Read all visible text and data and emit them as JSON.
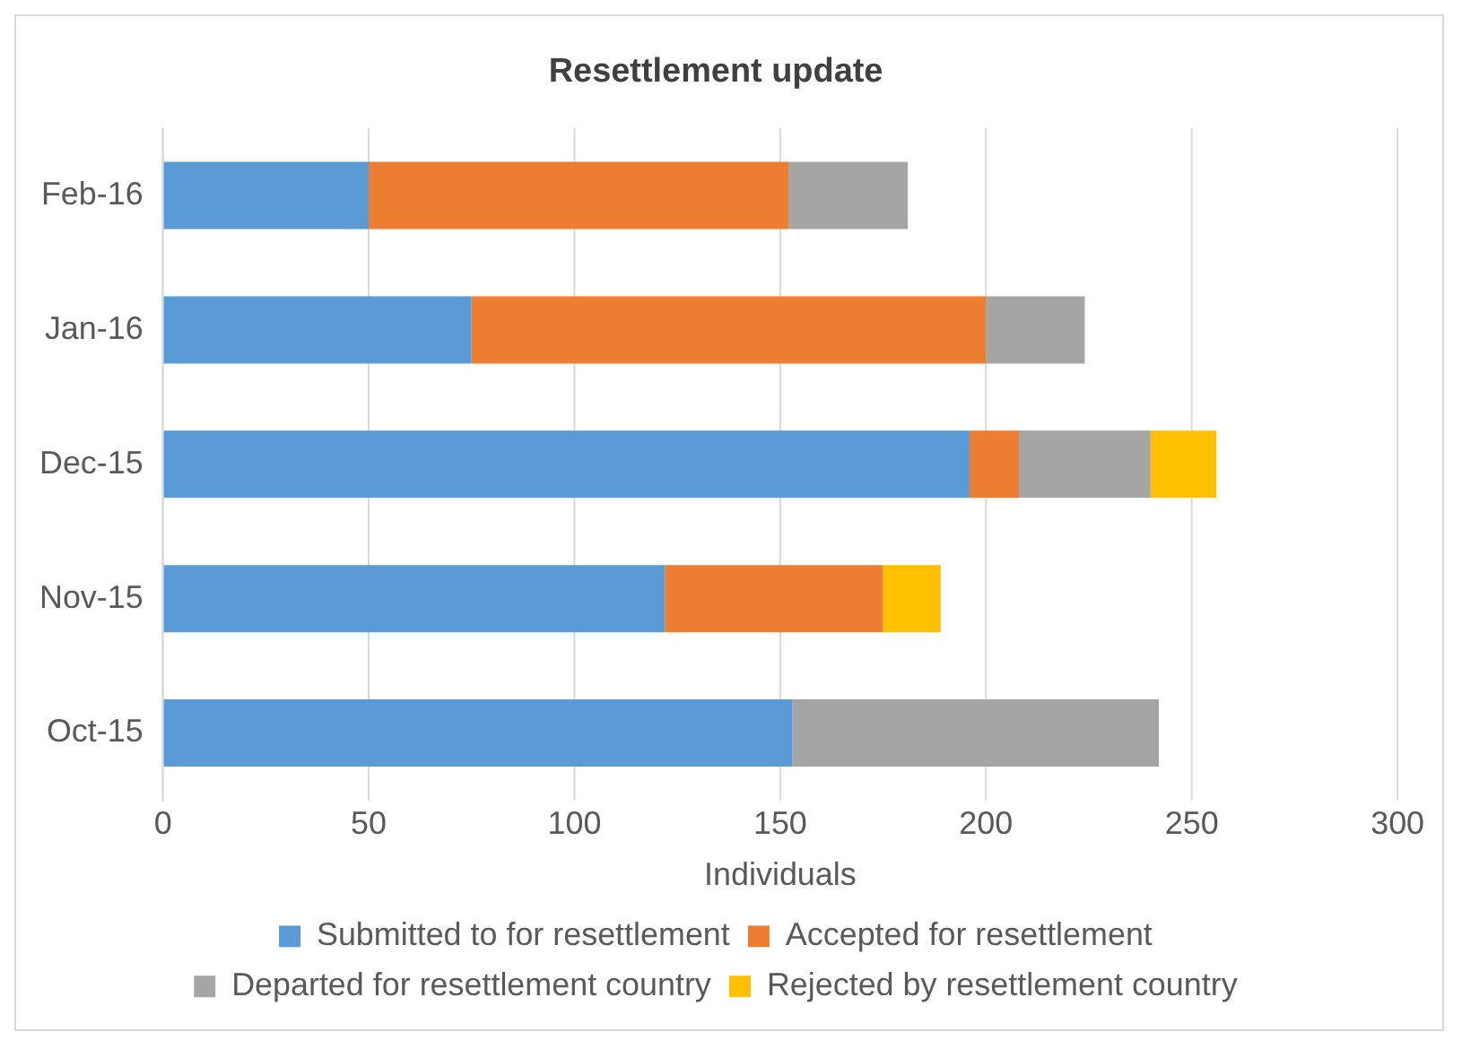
{
  "chart_data": {
    "type": "bar",
    "orientation": "horizontal",
    "stacked": true,
    "title": "Resettlement update",
    "xlabel": "Individuals",
    "categories": [
      "Feb-16",
      "Jan-16",
      "Dec-15",
      "Nov-15",
      "Oct-15"
    ],
    "series": [
      {
        "name": "Submitted to for resettlement",
        "color": "#5b9bd5",
        "values": [
          50,
          75,
          196,
          122,
          153
        ]
      },
      {
        "name": "Accepted for resettlement",
        "color": "#ed7d31",
        "values": [
          102,
          125,
          12,
          53,
          null
        ]
      },
      {
        "name": "Departed for resettlement country",
        "color": "#a5a5a5",
        "values": [
          29,
          24,
          32,
          null,
          89
        ]
      },
      {
        "name": "Rejected by resettlement country",
        "color": "#ffc000",
        "values": [
          null,
          null,
          16,
          14,
          null
        ]
      }
    ],
    "xlim": [
      0,
      300
    ],
    "xticks": [
      0,
      50,
      100,
      150,
      200,
      250,
      300
    ],
    "grid": "x",
    "legend": "bottom"
  }
}
